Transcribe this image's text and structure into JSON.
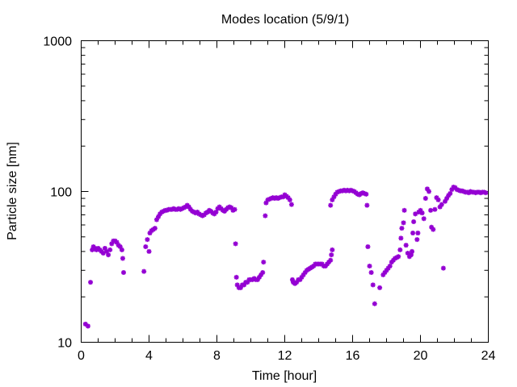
{
  "chart_data": {
    "type": "scatter",
    "title": "Modes location (5/9/1)",
    "xlabel": "Time [hour]",
    "ylabel": "Particle size [nm]",
    "xlim": [
      0,
      24
    ],
    "ylim": [
      10,
      1000
    ],
    "yscale": "log",
    "xticks": [
      0,
      4,
      8,
      12,
      16,
      20,
      24
    ],
    "xtick_labels": [
      "0",
      "4",
      "8",
      "12",
      "16",
      "20",
      "24"
    ],
    "yticks": [
      10,
      100,
      1000
    ],
    "ytick_labels": [
      "10",
      "100",
      "1000"
    ],
    "grid": false,
    "marker_color": "#9400d3",
    "series": [
      {
        "values": [
          [
            0.25,
            13.2
          ],
          [
            0.4,
            12.8
          ],
          [
            0.55,
            25
          ],
          [
            0.65,
            41
          ],
          [
            0.72,
            43
          ],
          [
            0.8,
            42
          ],
          [
            0.9,
            41
          ],
          [
            1.0,
            42
          ],
          [
            1.1,
            41
          ],
          [
            1.2,
            40
          ],
          [
            1.3,
            39
          ],
          [
            1.4,
            42
          ],
          [
            1.5,
            40
          ],
          [
            1.6,
            38
          ],
          [
            1.7,
            41
          ],
          [
            1.8,
            45
          ],
          [
            1.9,
            47
          ],
          [
            2.0,
            47
          ],
          [
            2.1,
            46
          ],
          [
            2.2,
            44
          ],
          [
            2.3,
            43
          ],
          [
            2.4,
            41
          ],
          [
            2.45,
            36
          ],
          [
            2.5,
            29
          ],
          [
            3.7,
            29.5
          ],
          [
            3.8,
            43
          ],
          [
            3.9,
            48
          ],
          [
            4.0,
            40
          ],
          [
            4.05,
            53
          ],
          [
            4.15,
            55
          ],
          [
            4.25,
            56
          ],
          [
            4.35,
            57
          ],
          [
            4.45,
            65
          ],
          [
            4.55,
            68
          ],
          [
            4.65,
            71
          ],
          [
            4.75,
            73
          ],
          [
            4.85,
            74
          ],
          [
            4.95,
            75
          ],
          [
            5.05,
            75
          ],
          [
            5.15,
            76
          ],
          [
            5.25,
            76
          ],
          [
            5.35,
            76
          ],
          [
            5.45,
            77
          ],
          [
            5.55,
            76
          ],
          [
            5.65,
            76
          ],
          [
            5.75,
            77
          ],
          [
            5.85,
            76
          ],
          [
            5.95,
            77
          ],
          [
            6.05,
            78
          ],
          [
            6.15,
            79
          ],
          [
            6.25,
            81
          ],
          [
            6.35,
            79
          ],
          [
            6.45,
            76
          ],
          [
            6.55,
            74
          ],
          [
            6.65,
            73
          ],
          [
            6.75,
            72
          ],
          [
            6.85,
            73
          ],
          [
            6.95,
            71
          ],
          [
            7.05,
            70
          ],
          [
            7.15,
            69
          ],
          [
            7.25,
            70
          ],
          [
            7.35,
            72
          ],
          [
            7.45,
            73
          ],
          [
            7.55,
            75
          ],
          [
            7.65,
            74
          ],
          [
            7.75,
            72
          ],
          [
            7.85,
            71
          ],
          [
            7.95,
            73
          ],
          [
            8.05,
            77
          ],
          [
            8.15,
            79
          ],
          [
            8.25,
            77
          ],
          [
            8.35,
            75
          ],
          [
            8.45,
            74
          ],
          [
            8.55,
            76
          ],
          [
            8.65,
            78
          ],
          [
            8.75,
            79
          ],
          [
            8.85,
            78
          ],
          [
            8.95,
            75
          ],
          [
            9.05,
            76
          ],
          [
            9.1,
            45
          ],
          [
            9.15,
            27
          ],
          [
            9.2,
            24
          ],
          [
            9.3,
            23
          ],
          [
            9.4,
            23
          ],
          [
            9.5,
            24
          ],
          [
            9.6,
            24
          ],
          [
            9.7,
            25
          ],
          [
            9.8,
            25
          ],
          [
            9.9,
            26
          ],
          [
            10.0,
            26
          ],
          [
            10.1,
            26
          ],
          [
            10.2,
            26.5
          ],
          [
            10.3,
            26
          ],
          [
            10.4,
            26
          ],
          [
            10.5,
            27
          ],
          [
            10.6,
            28
          ],
          [
            10.7,
            29
          ],
          [
            10.75,
            34
          ],
          [
            10.85,
            69
          ],
          [
            10.9,
            84
          ],
          [
            11.0,
            88
          ],
          [
            11.1,
            89
          ],
          [
            11.2,
            90
          ],
          [
            11.3,
            91
          ],
          [
            11.4,
            90
          ],
          [
            11.5,
            91
          ],
          [
            11.6,
            90
          ],
          [
            11.7,
            91
          ],
          [
            11.8,
            92
          ],
          [
            11.9,
            92
          ],
          [
            12.0,
            95
          ],
          [
            12.1,
            93
          ],
          [
            12.2,
            91
          ],
          [
            12.3,
            88
          ],
          [
            12.4,
            82
          ],
          [
            12.45,
            26
          ],
          [
            12.5,
            25
          ],
          [
            12.6,
            24.5
          ],
          [
            12.7,
            25
          ],
          [
            12.8,
            26
          ],
          [
            12.9,
            26
          ],
          [
            13.0,
            27
          ],
          [
            13.1,
            28
          ],
          [
            13.2,
            29
          ],
          [
            13.3,
            30
          ],
          [
            13.4,
            30.5
          ],
          [
            13.5,
            31
          ],
          [
            13.6,
            31.5
          ],
          [
            13.7,
            32
          ],
          [
            13.8,
            33
          ],
          [
            13.9,
            33
          ],
          [
            14.0,
            33
          ],
          [
            14.1,
            33
          ],
          [
            14.2,
            33
          ],
          [
            14.3,
            32
          ],
          [
            14.4,
            32
          ],
          [
            14.5,
            33
          ],
          [
            14.6,
            34
          ],
          [
            14.7,
            35
          ],
          [
            14.75,
            38
          ],
          [
            14.8,
            41
          ],
          [
            14.7,
            81
          ],
          [
            14.8,
            88
          ],
          [
            14.9,
            92
          ],
          [
            15.0,
            96
          ],
          [
            15.1,
            99
          ],
          [
            15.2,
            100
          ],
          [
            15.3,
            101
          ],
          [
            15.4,
            101
          ],
          [
            15.5,
            102
          ],
          [
            15.6,
            101
          ],
          [
            15.7,
            102
          ],
          [
            15.8,
            101
          ],
          [
            15.9,
            102
          ],
          [
            16.0,
            101
          ],
          [
            16.1,
            100
          ],
          [
            16.2,
            98
          ],
          [
            16.3,
            96
          ],
          [
            16.4,
            95
          ],
          [
            16.5,
            97
          ],
          [
            16.6,
            98
          ],
          [
            16.7,
            97
          ],
          [
            16.8,
            96
          ],
          [
            16.85,
            81
          ],
          [
            16.9,
            43
          ],
          [
            17.0,
            32
          ],
          [
            17.1,
            29
          ],
          [
            17.2,
            24
          ],
          [
            17.3,
            18
          ],
          [
            17.6,
            23
          ],
          [
            17.8,
            28
          ],
          [
            17.9,
            29
          ],
          [
            18.0,
            30
          ],
          [
            18.1,
            31
          ],
          [
            18.2,
            32
          ],
          [
            18.3,
            34
          ],
          [
            18.4,
            35
          ],
          [
            18.5,
            36
          ],
          [
            18.6,
            36.5
          ],
          [
            18.7,
            37
          ],
          [
            18.8,
            41
          ],
          [
            18.85,
            49
          ],
          [
            18.9,
            57
          ],
          [
            19.0,
            62
          ],
          [
            19.05,
            75
          ],
          [
            19.15,
            44
          ],
          [
            19.25,
            39
          ],
          [
            19.35,
            37
          ],
          [
            19.45,
            38
          ],
          [
            19.5,
            40
          ],
          [
            19.55,
            53
          ],
          [
            19.6,
            63
          ],
          [
            19.7,
            71
          ],
          [
            19.8,
            48
          ],
          [
            19.85,
            53
          ],
          [
            19.9,
            73
          ],
          [
            20.0,
            75
          ],
          [
            20.1,
            72
          ],
          [
            20.2,
            66
          ],
          [
            20.3,
            90
          ],
          [
            20.4,
            104
          ],
          [
            20.5,
            100
          ],
          [
            20.6,
            75
          ],
          [
            20.65,
            58
          ],
          [
            20.75,
            56
          ],
          [
            20.85,
            76
          ],
          [
            20.95,
            91
          ],
          [
            21.05,
            88
          ],
          [
            21.15,
            79
          ],
          [
            21.25,
            82
          ],
          [
            21.35,
            31
          ],
          [
            21.45,
            86
          ],
          [
            21.55,
            90
          ],
          [
            21.65,
            94
          ],
          [
            21.75,
            97
          ],
          [
            21.85,
            103
          ],
          [
            21.95,
            107
          ],
          [
            22.05,
            106
          ],
          [
            22.15,
            103
          ],
          [
            22.25,
            102
          ],
          [
            22.35,
            101
          ],
          [
            22.45,
            101
          ],
          [
            22.55,
            100
          ],
          [
            22.65,
            99
          ],
          [
            22.75,
            99
          ],
          [
            22.85,
            98
          ],
          [
            22.95,
            100
          ],
          [
            23.05,
            99
          ],
          [
            23.15,
            99
          ],
          [
            23.25,
            98
          ],
          [
            23.35,
            99
          ],
          [
            23.45,
            99
          ],
          [
            23.55,
            98
          ],
          [
            23.65,
            99
          ],
          [
            23.75,
            99
          ],
          [
            23.85,
            98
          ]
        ]
      }
    ]
  }
}
